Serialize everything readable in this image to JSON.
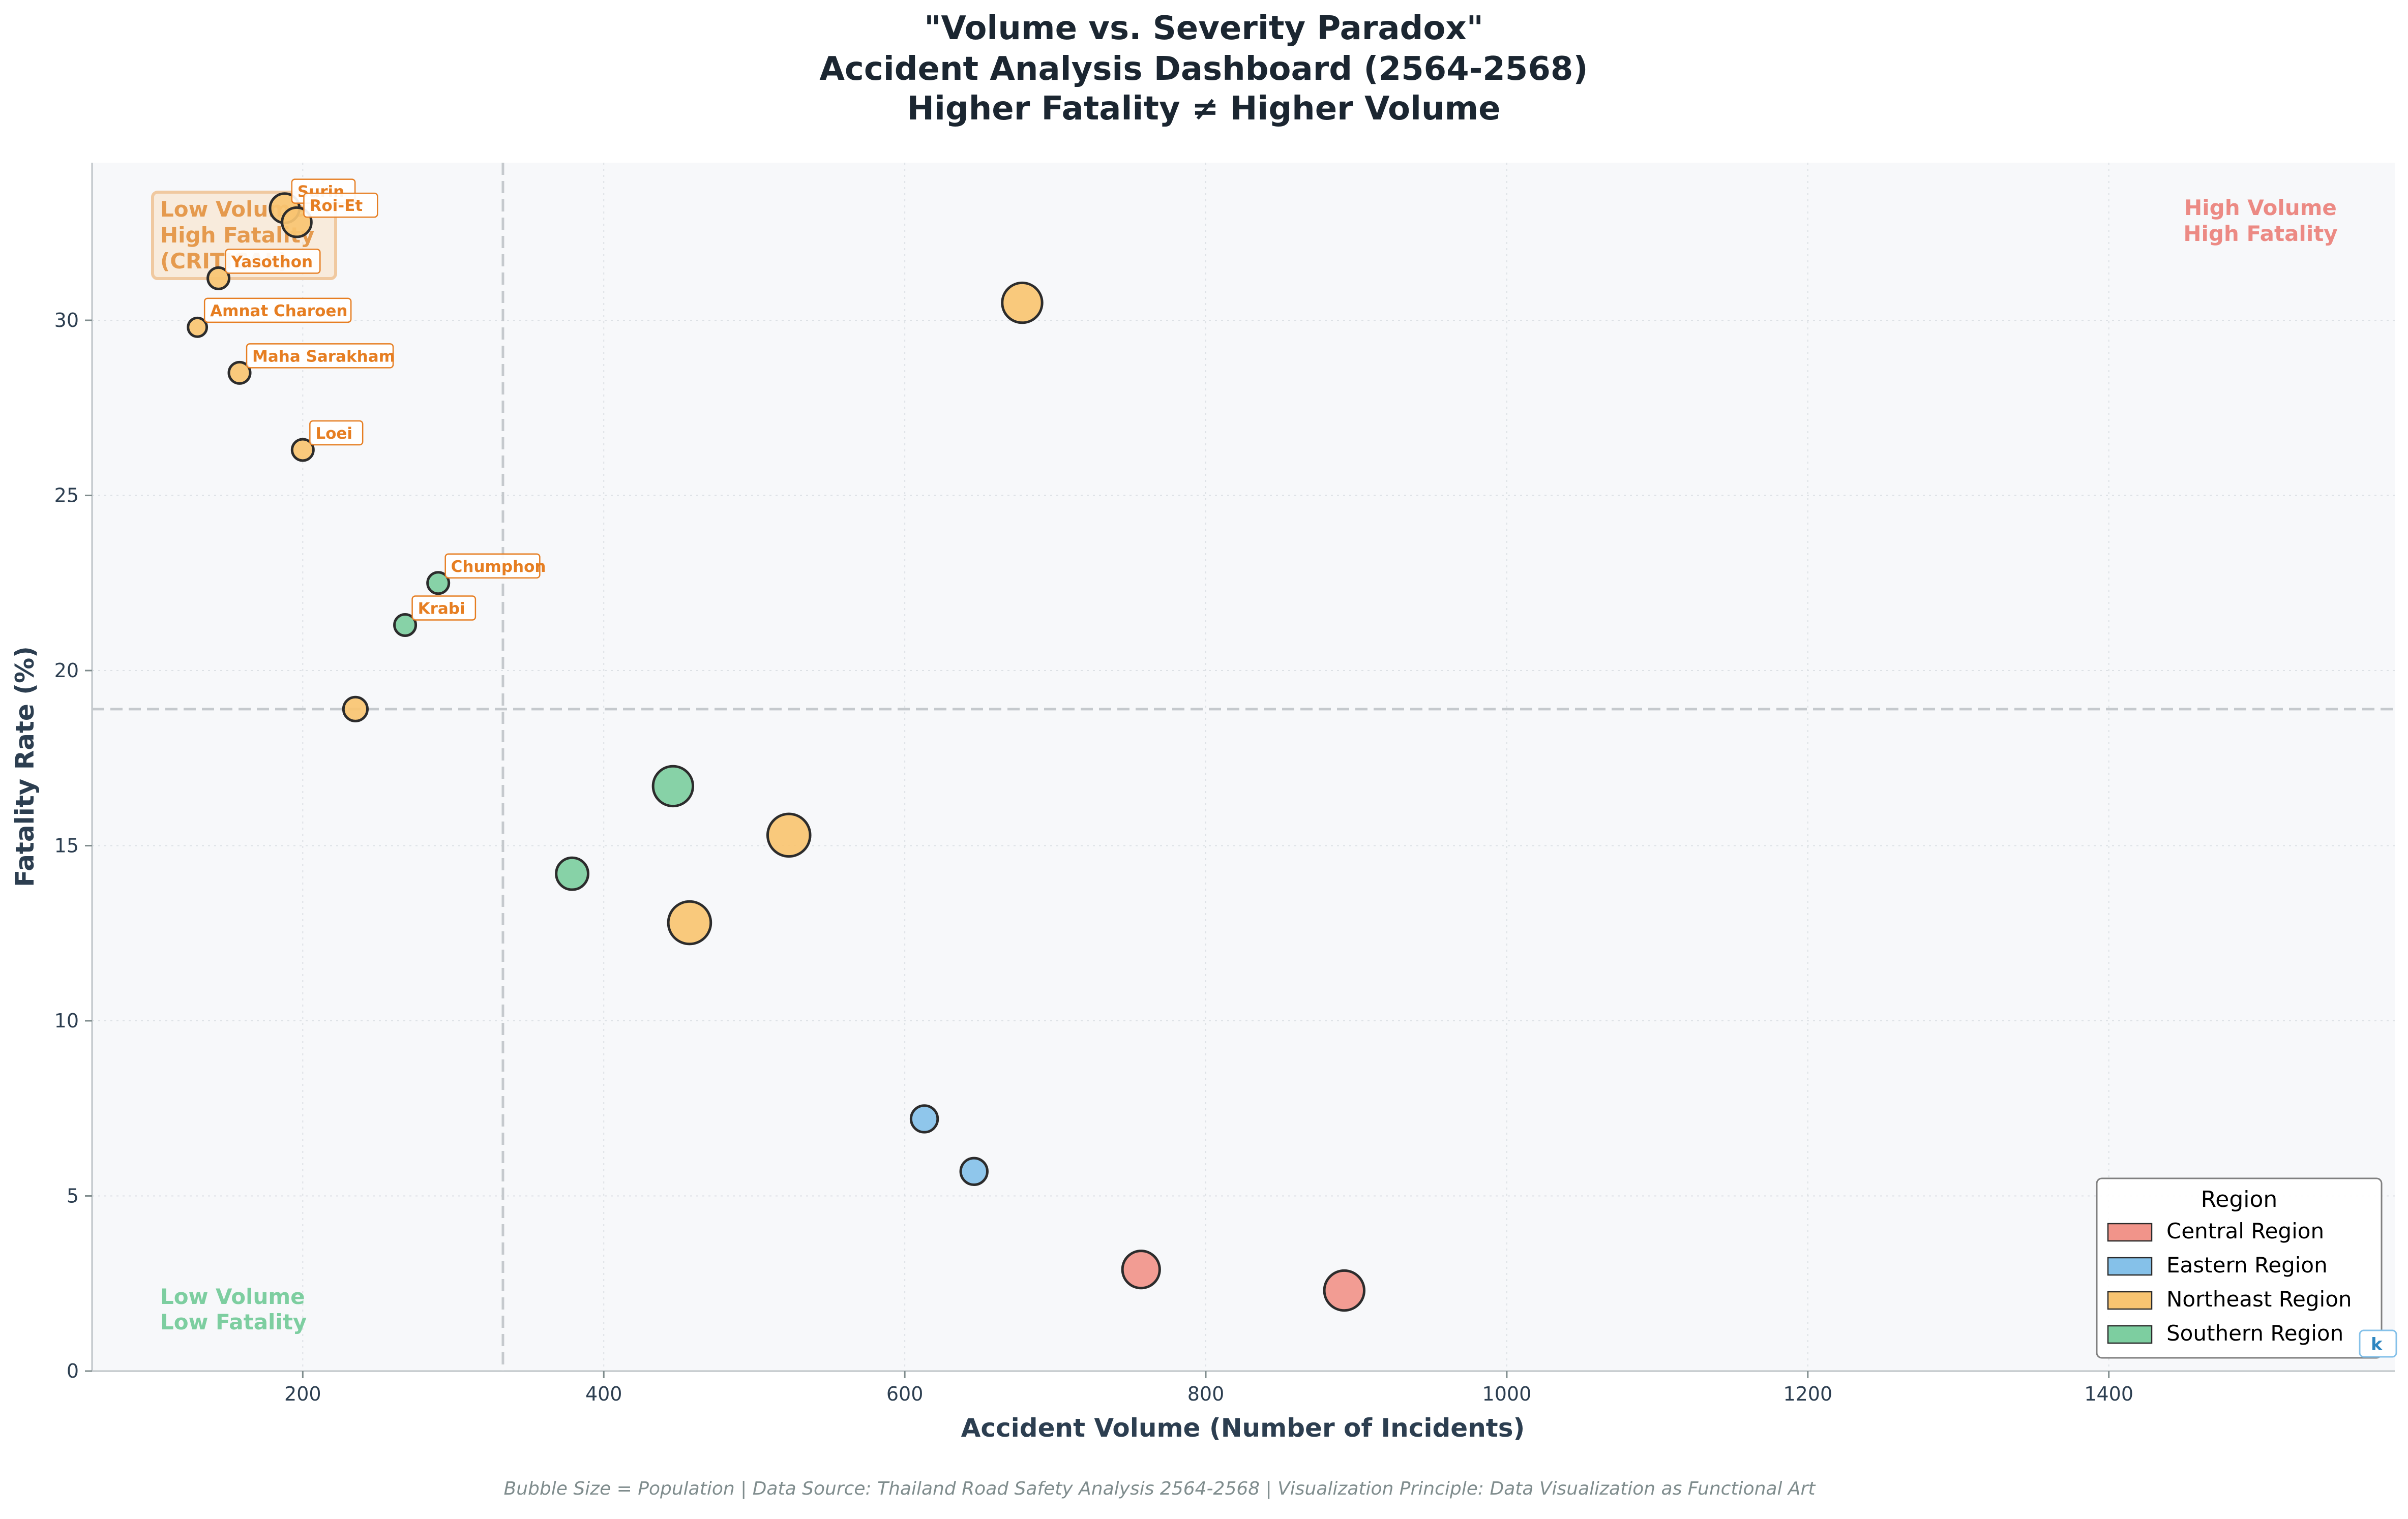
{
  "title_lines": [
    "\"Volume vs. Severity Paradox\"",
    "Accident Analysis Dashboard (2564-2568)",
    "Higher Fatality ≠ Higher Volume"
  ],
  "footer": "Bubble Size = Population | Data Source: Thailand Road Safety Analysis 2564-2568 | Visualization Principle: Data Visualization as Functional Art",
  "quadrants": {
    "top_left": [
      "Low Volume",
      "High Fatality",
      "(CRITICAL)"
    ],
    "top_right": [
      "High Volume",
      "High Fatality"
    ],
    "bottom_left": [
      "Low Volume",
      "Low Fatality"
    ]
  },
  "colors": {
    "Central Region": "#F1948A",
    "Eastern Region": "#85C1E9",
    "Northeast Region": "#F8C471",
    "Southern Region": "#7DCEA0",
    "label_orange": "#E67E22",
    "label_blue": "#2E86C1",
    "critical_text": "#E59A4E",
    "high_text": "#EC8A84",
    "low_text": "#7DCEA0"
  },
  "chart_data": {
    "type": "scatter",
    "title": "\"Volume vs. Severity Paradox\" Accident Analysis Dashboard (2564-2568) Higher Fatality ≠ Higher Volume",
    "xlabel": "Accident Volume (Number of Incidents)",
    "ylabel": "Fatality Rate (%)",
    "xlim": [
      60,
      1590
    ],
    "ylim": [
      0,
      34.5
    ],
    "xticks": [
      200,
      400,
      600,
      800,
      1000,
      1200,
      1400
    ],
    "yticks": [
      0,
      5,
      10,
      15,
      20,
      25,
      30
    ],
    "grid": true,
    "reference_lines": {
      "x": 333,
      "y": 18.9
    },
    "legend": {
      "title": "Region",
      "placement": "bottom-right",
      "entries": [
        "Central Region",
        "Eastern Region",
        "Northeast Region",
        "Southern Region"
      ]
    },
    "points": [
      {
        "label": "Surin",
        "region": "Northeast Region",
        "x": 188,
        "y": 33.2,
        "size": 1.6
      },
      {
        "label": "Roi-Et",
        "region": "Northeast Region",
        "x": 196,
        "y": 32.8,
        "size": 1.6
      },
      {
        "label": "Yasothon",
        "region": "Northeast Region",
        "x": 144,
        "y": 31.2,
        "size": 1.0
      },
      {
        "label": "Amnat Charoen",
        "region": "Northeast Region",
        "x": 130,
        "y": 29.8,
        "size": 0.8
      },
      {
        "label": "Maha Sarakham",
        "region": "Northeast Region",
        "x": 158,
        "y": 28.5,
        "size": 1.0
      },
      {
        "label": "Loei",
        "region": "Northeast Region",
        "x": 200,
        "y": 26.3,
        "size": 1.0
      },
      {
        "label": "Chumphon",
        "region": "Southern Region",
        "x": 290,
        "y": 22.5,
        "size": 1.0
      },
      {
        "label": "Krabi",
        "region": "Southern Region",
        "x": 268,
        "y": 21.3,
        "size": 1.0
      },
      {
        "label": "",
        "region": "Northeast Region",
        "x": 235,
        "y": 18.9,
        "size": 1.2
      },
      {
        "label": "",
        "region": "Northeast Region",
        "x": 678,
        "y": 30.5,
        "size": 2.4
      },
      {
        "label": "",
        "region": "Southern Region",
        "x": 446,
        "y": 16.7,
        "size": 2.4
      },
      {
        "label": "",
        "region": "Northeast Region",
        "x": 523,
        "y": 15.3,
        "size": 2.6
      },
      {
        "label": "",
        "region": "Southern Region",
        "x": 379,
        "y": 14.2,
        "size": 1.8
      },
      {
        "label": "",
        "region": "Northeast Region",
        "x": 457,
        "y": 12.8,
        "size": 2.6
      },
      {
        "label": "",
        "region": "Eastern Region",
        "x": 613,
        "y": 7.2,
        "size": 1.4
      },
      {
        "label": "",
        "region": "Eastern Region",
        "x": 646,
        "y": 5.7,
        "size": 1.4
      },
      {
        "label": "",
        "region": "Central Region",
        "x": 757,
        "y": 2.9,
        "size": 2.2
      },
      {
        "label": "",
        "region": "Central Region",
        "x": 892,
        "y": 2.3,
        "size": 2.4
      }
    ],
    "cut_label": {
      "text": "k",
      "region": "Central Region"
    }
  }
}
